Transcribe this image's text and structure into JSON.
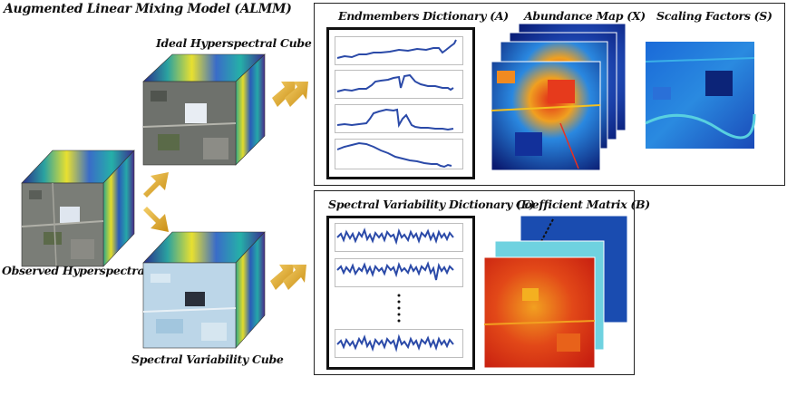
{
  "title": "Augmented Linear Mixing Model (ALMM)",
  "labels": {
    "ideal_cube": "Ideal Hyperspectral Cube",
    "observed_cube": "Observed Hyperspectral Cube",
    "variability_cube": "Spectral Variability Cube"
  },
  "top_panel": {
    "endmembers": "Endmembers Dictionary (A)",
    "abundance": "Abundance Map (X)",
    "scaling": "Scaling Factors (S)"
  },
  "bottom_panel": {
    "variability_dict": "Spectral Variability Dictionary (E)",
    "coefficient": "Coefficient Matrix (B)"
  },
  "colors": {
    "arrow": "#d9a520",
    "curve": "#2b4aa8",
    "jet_dark": "#0a1f7a",
    "jet_red": "#d8301a"
  }
}
